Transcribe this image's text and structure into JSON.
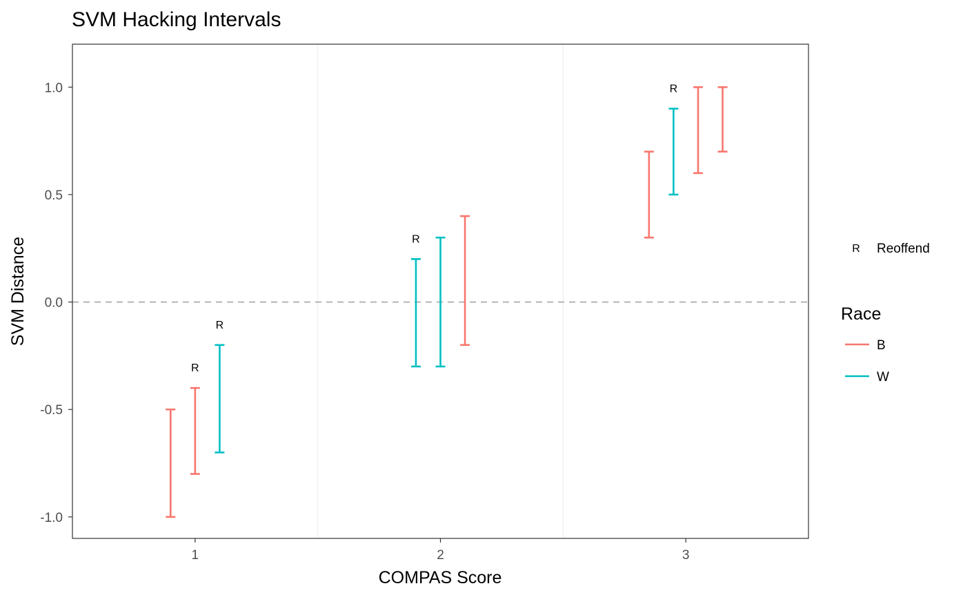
{
  "chart_data": {
    "type": "errorbar",
    "title": "SVM Hacking Intervals",
    "xlabel": "COMPAS Score",
    "ylabel": "SVM Distance",
    "xlim": [
      0.5,
      3.5
    ],
    "ylim": [
      -1.1,
      1.2
    ],
    "x_ticks": [
      "1",
      "2",
      "3"
    ],
    "y_ticks": [
      "-1.0",
      "-0.5",
      "0.0",
      "0.5",
      "1.0"
    ],
    "y_tick_values": [
      -1.0,
      -0.5,
      0.0,
      0.5,
      1.0
    ],
    "reference_line": {
      "y": 0,
      "style": "dashed",
      "color": "#b3b3b3"
    },
    "grid": true,
    "legend": {
      "placement": "right",
      "label_legend": {
        "symbol": "R",
        "label": "Reoffend"
      },
      "race_title": "Race",
      "race_items": [
        {
          "name": "B",
          "color": "#F8766D"
        },
        {
          "name": "W",
          "color": "#00BFC4"
        }
      ]
    },
    "colors": {
      "B": "#F8766D",
      "W": "#00BFC4"
    },
    "intervals": [
      {
        "x": 0.9,
        "race": "B",
        "ymin": -1.0,
        "ymax": -0.5,
        "reoffend": false
      },
      {
        "x": 1.0,
        "race": "B",
        "ymin": -0.8,
        "ymax": -0.4,
        "reoffend": true
      },
      {
        "x": 1.1,
        "race": "W",
        "ymin": -0.7,
        "ymax": -0.2,
        "reoffend": true
      },
      {
        "x": 1.9,
        "race": "W",
        "ymin": -0.3,
        "ymax": 0.2,
        "reoffend": true
      },
      {
        "x": 2.0,
        "race": "W",
        "ymin": -0.3,
        "ymax": 0.3,
        "reoffend": false
      },
      {
        "x": 2.1,
        "race": "B",
        "ymin": -0.2,
        "ymax": 0.4,
        "reoffend": false
      },
      {
        "x": 2.85,
        "race": "B",
        "ymin": 0.3,
        "ymax": 0.7,
        "reoffend": false
      },
      {
        "x": 2.95,
        "race": "W",
        "ymin": 0.5,
        "ymax": 0.9,
        "reoffend": true
      },
      {
        "x": 3.05,
        "race": "B",
        "ymin": 0.6,
        "ymax": 1.0,
        "reoffend": false
      },
      {
        "x": 3.15,
        "race": "B",
        "ymin": 0.7,
        "ymax": 1.0,
        "reoffend": false
      }
    ],
    "reoffend_label": "R"
  }
}
